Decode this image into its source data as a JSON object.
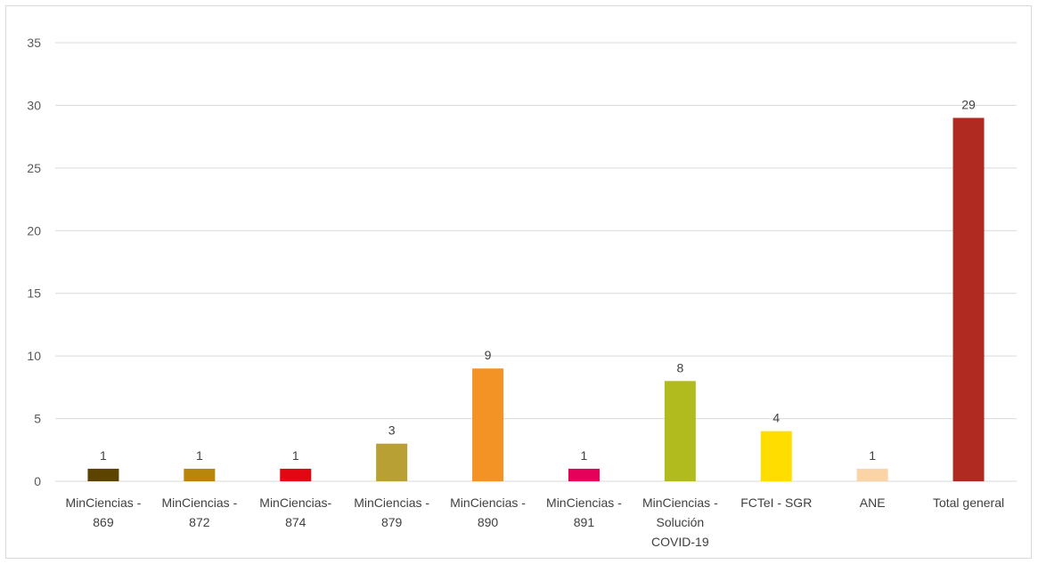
{
  "chart_data": {
    "type": "bar",
    "title": "",
    "xlabel": "",
    "ylabel": "",
    "ylim": [
      0,
      35
    ],
    "yticks": [
      0,
      5,
      10,
      15,
      20,
      25,
      30,
      35
    ],
    "grid": true,
    "legend": "none",
    "categories": [
      [
        "MinCiencias -",
        "869"
      ],
      [
        "MinCiencias -",
        "872"
      ],
      [
        "MinCiencias-",
        "874"
      ],
      [
        "MinCiencias -",
        "879"
      ],
      [
        "MinCiencias -",
        "890"
      ],
      [
        "MinCiencias -",
        "891"
      ],
      [
        "MinCiencias -",
        "Solución",
        "COVID-19"
      ],
      [
        "FCTeI - SGR"
      ],
      [
        "ANE"
      ],
      [
        "Total general"
      ]
    ],
    "values": [
      1,
      1,
      1,
      3,
      9,
      1,
      8,
      4,
      1,
      29
    ],
    "colors": [
      "#5c4300",
      "#b8860b",
      "#e30613",
      "#b8a034",
      "#f39325",
      "#e5005a",
      "#b2bb1e",
      "#ffdd00",
      "#fad4a6",
      "#b12a22"
    ]
  }
}
